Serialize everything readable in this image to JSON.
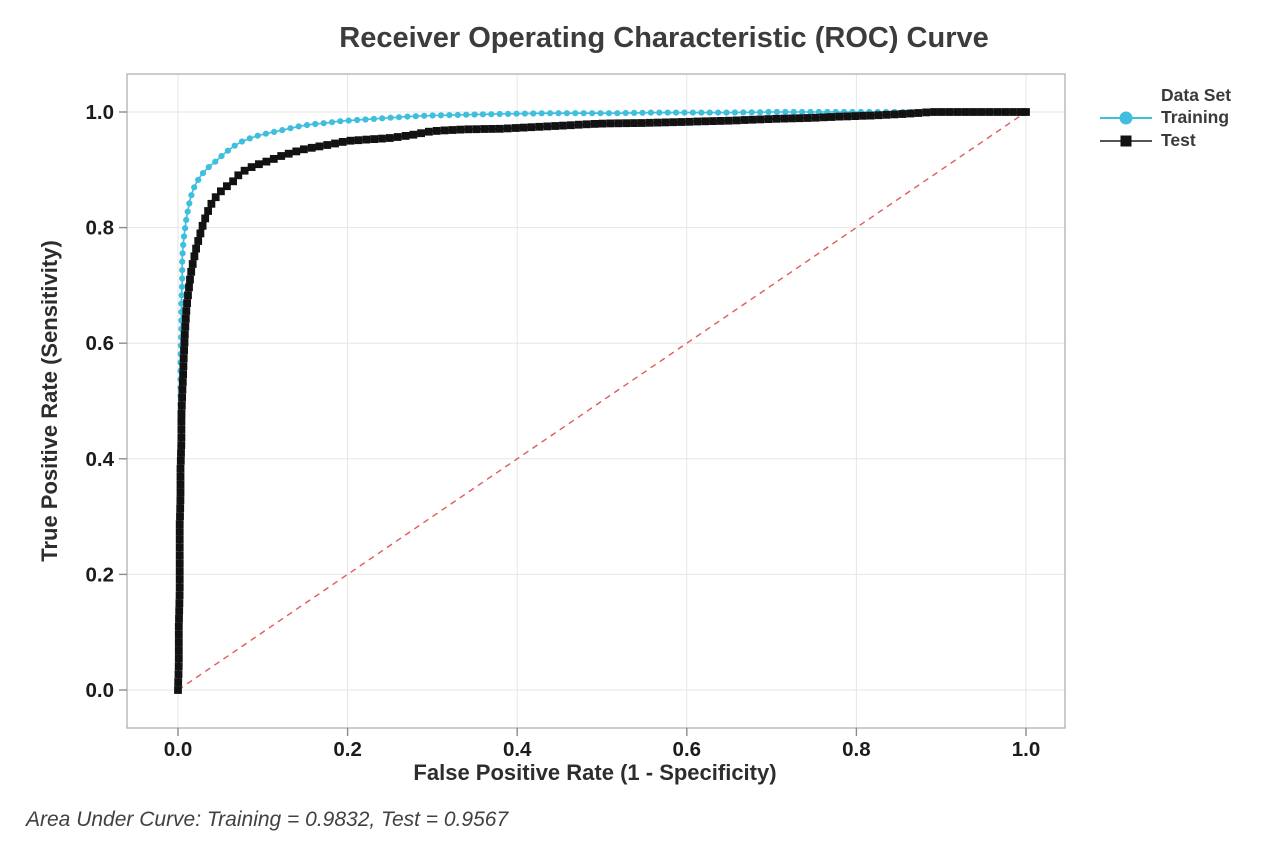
{
  "annotation": {
    "area_under_curve": "Area Under Curve: Training = 0.9832, Test = 0.9567"
  },
  "chart_data": {
    "type": "line",
    "title": "Receiver Operating Characteristic (ROC) Curve",
    "xlabel": "False Positive Rate (1 - Specificity)",
    "ylabel": "True Positive Rate (Sensitivity)",
    "xlim": [
      0,
      1
    ],
    "ylim": [
      0,
      1
    ],
    "xticks": [
      0.0,
      0.2,
      0.4,
      0.6,
      0.8,
      1.0
    ],
    "yticks": [
      0.0,
      0.2,
      0.4,
      0.6,
      0.8,
      1.0
    ],
    "xtick_labels": [
      "0.0",
      "0.2",
      "0.4",
      "0.6",
      "0.8",
      "1.0"
    ],
    "ytick_labels": [
      "0.0",
      "0.2",
      "0.4",
      "0.6",
      "0.8",
      "1.0"
    ],
    "grid": true,
    "legend": {
      "title": "Data Set",
      "position": "right"
    },
    "reference_line": {
      "name": "chance-diagonal",
      "from": [
        0,
        0
      ],
      "to": [
        1,
        1
      ],
      "style": "dashed",
      "color": "#e05b5b"
    },
    "colors": {
      "grid": "#e6e6e6",
      "frame": "#aaaaaa",
      "tick": "#8c8c8c",
      "tick_label": "#1c1c1c"
    },
    "series": [
      {
        "name": "Training",
        "auc": 0.9832,
        "marker": "circle",
        "color": "#3fbfdd",
        "line_color": "#3fbfdd",
        "points": [
          [
            0.0,
            0.0
          ],
          [
            0.001,
            0.06
          ],
          [
            0.001,
            0.13
          ],
          [
            0.002,
            0.2
          ],
          [
            0.002,
            0.28
          ],
          [
            0.002,
            0.36
          ],
          [
            0.003,
            0.44
          ],
          [
            0.003,
            0.51
          ],
          [
            0.003,
            0.57
          ],
          [
            0.004,
            0.625
          ],
          [
            0.004,
            0.67
          ],
          [
            0.005,
            0.71
          ],
          [
            0.005,
            0.745
          ],
          [
            0.006,
            0.768
          ],
          [
            0.007,
            0.783
          ],
          [
            0.008,
            0.795
          ],
          [
            0.009,
            0.806
          ],
          [
            0.01,
            0.817
          ],
          [
            0.012,
            0.832
          ],
          [
            0.014,
            0.847
          ],
          [
            0.017,
            0.862
          ],
          [
            0.02,
            0.873
          ],
          [
            0.024,
            0.883
          ],
          [
            0.028,
            0.892
          ],
          [
            0.033,
            0.9
          ],
          [
            0.038,
            0.907
          ],
          [
            0.044,
            0.914
          ],
          [
            0.05,
            0.922
          ],
          [
            0.057,
            0.931
          ],
          [
            0.065,
            0.94
          ],
          [
            0.074,
            0.948
          ],
          [
            0.084,
            0.954
          ],
          [
            0.094,
            0.959
          ],
          [
            0.105,
            0.963
          ],
          [
            0.115,
            0.966
          ],
          [
            0.13,
            0.971
          ],
          [
            0.145,
            0.976
          ],
          [
            0.16,
            0.979
          ],
          [
            0.175,
            0.981
          ],
          [
            0.19,
            0.984
          ],
          [
            0.21,
            0.986
          ],
          [
            0.23,
            0.988
          ],
          [
            0.25,
            0.99
          ],
          [
            0.27,
            0.992
          ],
          [
            0.3,
            0.994
          ],
          [
            0.33,
            0.995
          ],
          [
            0.36,
            0.996
          ],
          [
            0.4,
            0.997
          ],
          [
            0.44,
            0.998
          ],
          [
            0.48,
            0.998
          ],
          [
            0.52,
            0.998
          ],
          [
            0.56,
            0.999
          ],
          [
            0.6,
            0.999
          ],
          [
            0.65,
            0.999
          ],
          [
            0.7,
            1.0
          ],
          [
            0.75,
            1.0
          ],
          [
            0.8,
            1.0
          ],
          [
            0.85,
            1.0
          ],
          [
            0.9,
            1.0
          ],
          [
            0.95,
            1.0
          ],
          [
            1.0,
            1.0
          ]
        ]
      },
      {
        "name": "Test",
        "auc": 0.9567,
        "marker": "square",
        "color": "#121212",
        "line_color": "#333333",
        "points": [
          [
            0.0,
            0.0
          ],
          [
            0.001,
            0.05
          ],
          [
            0.001,
            0.11
          ],
          [
            0.002,
            0.17
          ],
          [
            0.002,
            0.23
          ],
          [
            0.002,
            0.285
          ],
          [
            0.003,
            0.335
          ],
          [
            0.003,
            0.385
          ],
          [
            0.004,
            0.43
          ],
          [
            0.004,
            0.472
          ],
          [
            0.005,
            0.51
          ],
          [
            0.006,
            0.548
          ],
          [
            0.007,
            0.583
          ],
          [
            0.008,
            0.613
          ],
          [
            0.009,
            0.638
          ],
          [
            0.01,
            0.66
          ],
          [
            0.012,
            0.686
          ],
          [
            0.014,
            0.708
          ],
          [
            0.016,
            0.728
          ],
          [
            0.019,
            0.748
          ],
          [
            0.022,
            0.768
          ],
          [
            0.026,
            0.788
          ],
          [
            0.03,
            0.808
          ],
          [
            0.035,
            0.827
          ],
          [
            0.04,
            0.843
          ],
          [
            0.046,
            0.856
          ],
          [
            0.052,
            0.865
          ],
          [
            0.058,
            0.872
          ],
          [
            0.065,
            0.88
          ],
          [
            0.072,
            0.892
          ],
          [
            0.08,
            0.9
          ],
          [
            0.09,
            0.907
          ],
          [
            0.1,
            0.912
          ],
          [
            0.11,
            0.917
          ],
          [
            0.12,
            0.923
          ],
          [
            0.135,
            0.93
          ],
          [
            0.15,
            0.936
          ],
          [
            0.165,
            0.94
          ],
          [
            0.18,
            0.944
          ],
          [
            0.2,
            0.95
          ],
          [
            0.22,
            0.952
          ],
          [
            0.25,
            0.955
          ],
          [
            0.275,
            0.96
          ],
          [
            0.3,
            0.967
          ],
          [
            0.34,
            0.97
          ],
          [
            0.38,
            0.971
          ],
          [
            0.42,
            0.974
          ],
          [
            0.46,
            0.977
          ],
          [
            0.5,
            0.98
          ],
          [
            0.55,
            0.981
          ],
          [
            0.6,
            0.983
          ],
          [
            0.65,
            0.985
          ],
          [
            0.7,
            0.988
          ],
          [
            0.75,
            0.99
          ],
          [
            0.78,
            0.992
          ],
          [
            0.82,
            0.994
          ],
          [
            0.86,
            0.997
          ],
          [
            0.89,
            1.0
          ],
          [
            0.95,
            1.0
          ],
          [
            1.0,
            1.0
          ]
        ]
      }
    ]
  }
}
